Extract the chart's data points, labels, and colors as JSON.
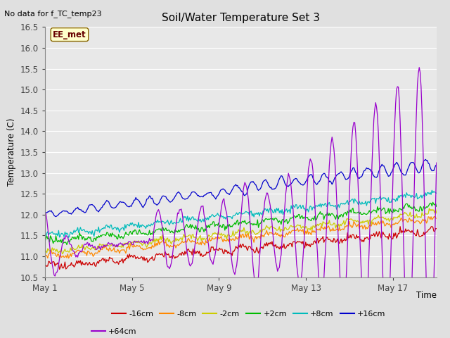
{
  "title": "Soil/Water Temperature Set 3",
  "no_data_text": "No data for f_TC_temp23",
  "ylabel": "Temperature (C)",
  "xlabel": "Time",
  "annotation": "EE_met",
  "ylim": [
    10.5,
    16.5
  ],
  "x_ticks": [
    1,
    5,
    9,
    13,
    17
  ],
  "x_tick_labels": [
    "May 1",
    "May 5",
    "May 9",
    "May 13",
    "May 17"
  ],
  "series_labels": [
    "-16cm",
    "-8cm",
    "-2cm",
    "+2cm",
    "+8cm",
    "+16cm",
    "+64cm"
  ],
  "series_colors": [
    "#cc0000",
    "#ff8800",
    "#cccc00",
    "#00bb00",
    "#00bbbb",
    "#0000cc",
    "#9900cc"
  ],
  "plot_bg_color": "#e8e8e8",
  "fig_bg_color": "#e0e0e0",
  "n_points": 432
}
